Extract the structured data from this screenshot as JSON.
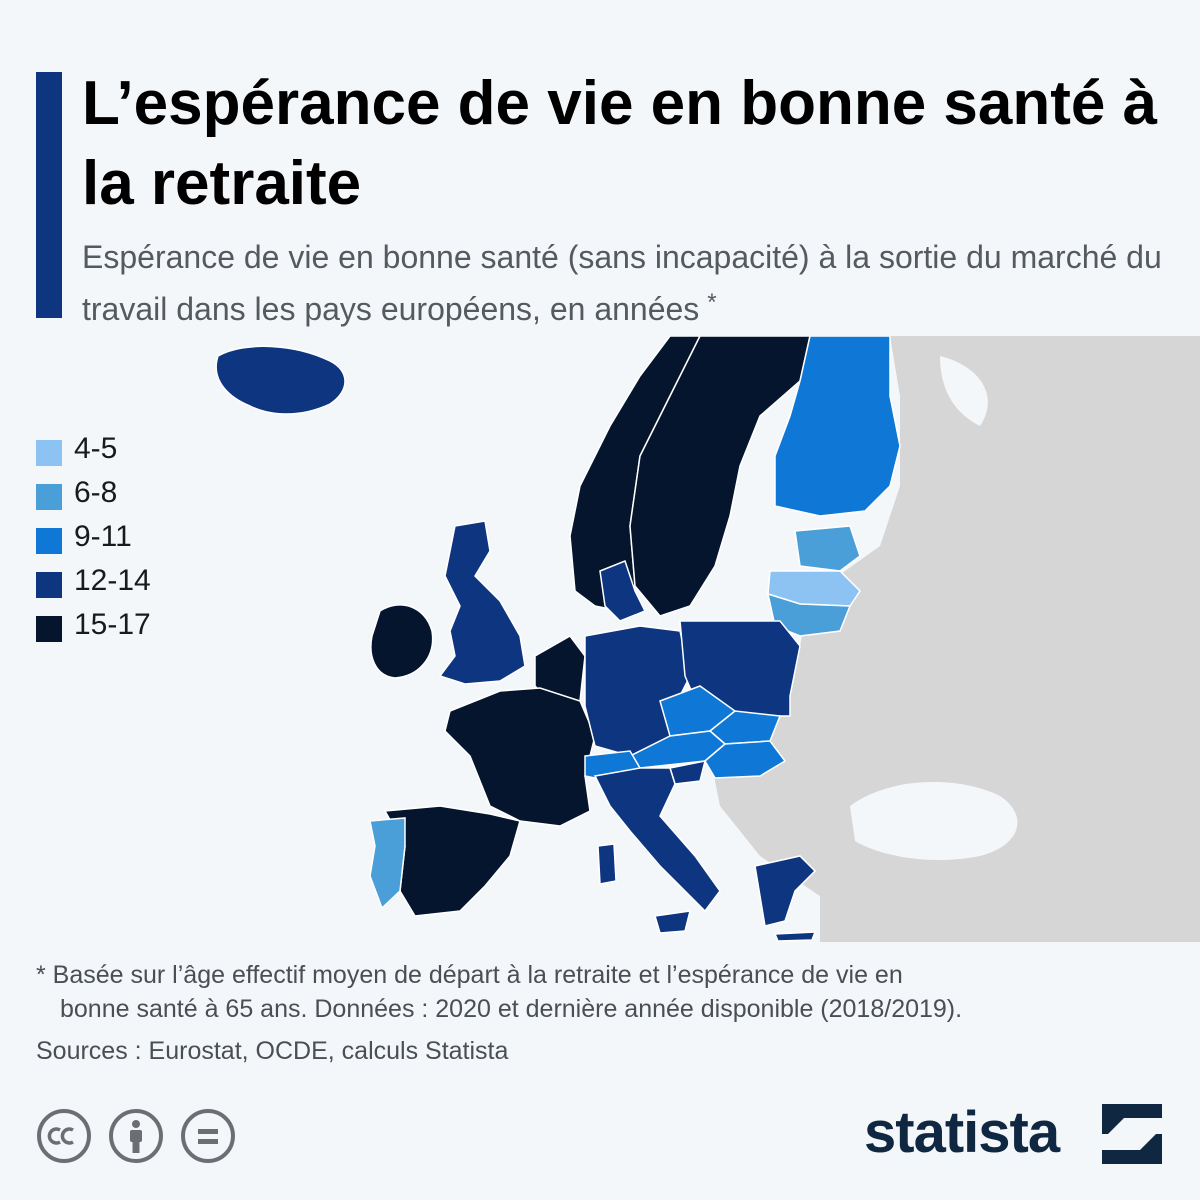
{
  "header": {
    "title": "L’espérance de vie en bonne santé à la retraite",
    "subtitle": "Espérance de vie en bonne santé (sans incapacité) à la sortie du marché du travail dans les pays européens, en années",
    "subtitle_marker": "*"
  },
  "legend": {
    "items": [
      {
        "label": "4-5",
        "color": "#8cc3f2"
      },
      {
        "label": "6-8",
        "color": "#4a9fd8"
      },
      {
        "label": "9-11",
        "color": "#0f78d7"
      },
      {
        "label": "12-14",
        "color": "#0d3580"
      },
      {
        "label": "15-17",
        "color": "#05152e"
      }
    ]
  },
  "map_colors": {
    "ocean": "#f4f7fa",
    "no_data": "#d6d6d6",
    "border": "#ffffff"
  },
  "footnote": {
    "line1": "* Basée sur l’âge effectif moyen de départ à la retraite et l’espérance de vie en",
    "line2": "bonne santé à 65 ans. Données : 2020 et dernière année disponible (2018/2019).",
    "sources": "Sources : Eurostat, OCDE, calculs Statista"
  },
  "license_icons": [
    "cc-icon",
    "by-attribution-icon",
    "nd-no-derivatives-icon"
  ],
  "brand": {
    "name": "statista",
    "color": "#0f2740"
  }
}
